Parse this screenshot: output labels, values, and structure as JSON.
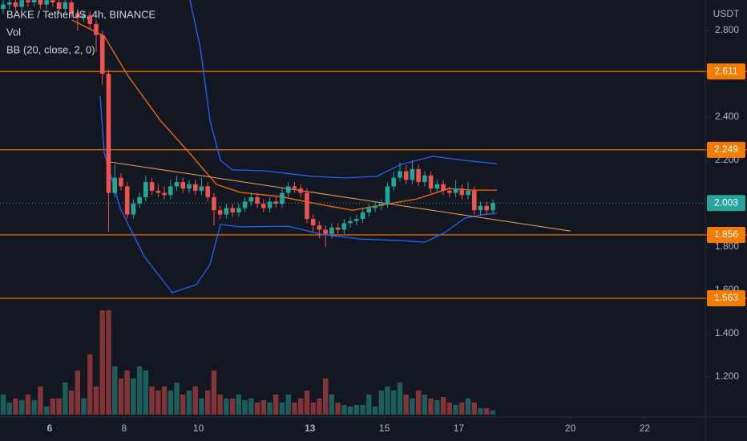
{
  "chart_data": {
    "type": "candlestick",
    "title": "BAKE / TetherUS, 4h, BINANCE",
    "indicators": [
      "Vol",
      "BB (20, close, 2, 0)"
    ],
    "currency": "USDT",
    "up_color": "#26a69a",
    "down_color": "#ef5350",
    "x": [
      4.75,
      4.917,
      5.083,
      5.25,
      5.417,
      5.583,
      5.75,
      5.917,
      6.083,
      6.25,
      6.417,
      6.583,
      6.75,
      6.917,
      7.083,
      7.25,
      7.417,
      7.583,
      7.75,
      7.917,
      8.083,
      8.25,
      8.417,
      8.583,
      8.75,
      8.917,
      9.083,
      9.25,
      9.417,
      9.583,
      9.75,
      9.917,
      10.083,
      10.25,
      10.417,
      10.583,
      10.75,
      10.917,
      11.083,
      11.25,
      11.417,
      11.583,
      11.75,
      11.917,
      12.083,
      12.25,
      12.417,
      12.583,
      12.75,
      12.917,
      13.083,
      13.25,
      13.417,
      13.583,
      13.75,
      13.917,
      14.083,
      14.25,
      14.417,
      14.583,
      14.75,
      14.917,
      15.083,
      15.25,
      15.417,
      15.583,
      15.75,
      15.917,
      16.083,
      16.25,
      16.417,
      16.583,
      16.75,
      16.917,
      17.083,
      17.25,
      17.417,
      17.583,
      17.75,
      17.917
    ],
    "open": [
      2.9,
      2.92,
      2.93,
      2.91,
      2.94,
      2.93,
      2.95,
      2.92,
      2.94,
      2.93,
      2.9,
      2.93,
      2.88,
      2.86,
      2.87,
      2.83,
      2.78,
      2.6,
      2.05,
      2.12,
      2.08,
      1.95,
      2.0,
      2.03,
      2.1,
      2.06,
      2.05,
      2.04,
      2.08,
      2.1,
      2.07,
      2.09,
      2.06,
      2.08,
      2.03,
      1.97,
      1.95,
      1.98,
      1.96,
      1.98,
      2.01,
      2.03,
      2.0,
      1.98,
      2.01,
      2.0,
      2.05,
      2.08,
      2.07,
      2.05,
      1.93,
      1.9,
      1.88,
      1.86,
      1.89,
      1.88,
      1.91,
      1.92,
      1.93,
      1.96,
      1.98,
      1.99,
      2.0,
      2.08,
      2.12,
      2.15,
      2.11,
      2.16,
      2.1,
      2.13,
      2.07,
      2.09,
      2.06,
      2.05,
      2.07,
      2.04,
      2.06,
      1.97,
      1.99,
      1.97
    ],
    "high": [
      2.94,
      2.95,
      2.95,
      2.96,
      2.96,
      2.97,
      2.97,
      2.96,
      2.96,
      2.95,
      2.95,
      2.95,
      2.9,
      2.89,
      2.89,
      2.85,
      2.8,
      2.62,
      2.18,
      2.14,
      2.1,
      2.02,
      2.05,
      2.13,
      2.12,
      2.09,
      2.08,
      2.11,
      2.13,
      2.12,
      2.11,
      2.11,
      2.12,
      2.1,
      2.05,
      1.99,
      2.0,
      2.0,
      2.0,
      2.03,
      2.05,
      2.05,
      2.02,
      2.03,
      2.03,
      2.07,
      2.1,
      2.1,
      2.09,
      2.07,
      1.95,
      1.92,
      1.9,
      1.91,
      1.91,
      1.93,
      1.94,
      1.95,
      1.98,
      2.0,
      2.01,
      2.02,
      2.1,
      2.15,
      2.19,
      2.18,
      2.2,
      2.18,
      2.15,
      2.15,
      2.11,
      2.11,
      2.08,
      2.11,
      2.09,
      2.1,
      2.08,
      2.01,
      2.01,
      2.02
    ],
    "low": [
      2.88,
      2.9,
      2.89,
      2.89,
      2.91,
      2.91,
      2.9,
      2.9,
      2.91,
      2.88,
      2.88,
      2.86,
      2.8,
      2.84,
      2.81,
      2.7,
      2.55,
      1.87,
      2.03,
      2.06,
      1.93,
      1.93,
      1.98,
      2.01,
      2.04,
      2.03,
      2.02,
      2.02,
      2.06,
      2.05,
      2.05,
      2.04,
      2.04,
      2.01,
      1.9,
      1.93,
      1.93,
      1.94,
      1.94,
      1.96,
      1.99,
      1.98,
      1.96,
      1.96,
      1.98,
      1.98,
      2.03,
      2.05,
      2.03,
      1.91,
      1.87,
      1.84,
      1.8,
      1.84,
      1.86,
      1.86,
      1.89,
      1.9,
      1.91,
      1.94,
      1.96,
      1.97,
      1.98,
      2.06,
      2.1,
      2.09,
      2.09,
      2.08,
      2.08,
      2.05,
      2.05,
      2.04,
      2.03,
      2.03,
      2.02,
      2.02,
      1.95,
      1.95,
      1.95,
      1.95
    ],
    "close": [
      2.92,
      2.93,
      2.91,
      2.94,
      2.93,
      2.95,
      2.92,
      2.94,
      2.93,
      2.9,
      2.93,
      2.88,
      2.86,
      2.87,
      2.83,
      2.78,
      2.6,
      2.05,
      2.12,
      2.08,
      1.95,
      2.0,
      2.03,
      2.1,
      2.06,
      2.05,
      2.04,
      2.08,
      2.1,
      2.07,
      2.09,
      2.06,
      2.08,
      2.03,
      1.97,
      1.95,
      1.98,
      1.96,
      1.98,
      2.01,
      2.03,
      2.0,
      1.98,
      2.01,
      2.0,
      2.05,
      2.08,
      2.07,
      2.05,
      1.93,
      1.9,
      1.88,
      1.86,
      1.89,
      1.88,
      1.91,
      1.92,
      1.93,
      1.96,
      1.98,
      1.99,
      2.0,
      2.08,
      2.12,
      2.15,
      2.11,
      2.16,
      2.1,
      2.13,
      2.07,
      2.09,
      2.06,
      2.05,
      2.07,
      2.04,
      2.06,
      1.97,
      1.99,
      1.97,
      2.003
    ],
    "volume": [
      25,
      15,
      20,
      18,
      25,
      18,
      35,
      10,
      20,
      20,
      40,
      30,
      55,
      20,
      75,
      35,
      130,
      130,
      60,
      45,
      55,
      45,
      60,
      55,
      35,
      30,
      35,
      30,
      40,
      25,
      30,
      35,
      20,
      30,
      55,
      25,
      20,
      20,
      25,
      18,
      20,
      15,
      18,
      15,
      25,
      15,
      25,
      15,
      20,
      30,
      15,
      20,
      45,
      25,
      15,
      12,
      10,
      12,
      12,
      25,
      10,
      30,
      35,
      30,
      40,
      25,
      20,
      30,
      25,
      20,
      18,
      22,
      15,
      12,
      15,
      20,
      15,
      8,
      8,
      5
    ],
    "lines": [
      {
        "color": "#2962ff",
        "x": [
          9.772,
          10.052,
          10.31,
          10.591,
          10.914,
          11.776,
          13.069,
          13.931,
          14.793,
          15.44,
          16.302,
          17.164,
          18.026
        ],
        "values": [
          2.941,
          2.719,
          2.385,
          2.2,
          2.156,
          2.152,
          2.126,
          2.119,
          2.126,
          2.181,
          2.219,
          2.2,
          2.185
        ]
      },
      {
        "color": "#ff6d00",
        "x": [
          6.603,
          7.466,
          8.112,
          8.974,
          9.836,
          10.483,
          11.129,
          12.207,
          13.284,
          14.147,
          15.009,
          15.871,
          16.733,
          17.379,
          18.026
        ],
        "values": [
          2.848,
          2.774,
          2.589,
          2.385,
          2.219,
          2.089,
          2.052,
          2.033,
          1.996,
          1.97,
          1.996,
          2.022,
          2.07,
          2.063,
          2.063
        ]
      },
      {
        "color": "#2962ff",
        "x": [
          7.358,
          7.466,
          7.897,
          8.543,
          9.297,
          9.944,
          10.31,
          10.591,
          11.129,
          12.422,
          13.284,
          14.362,
          15.44,
          16.086,
          16.625,
          17.164,
          17.595,
          18.026
        ],
        "values": [
          2.496,
          2.237,
          1.978,
          1.756,
          1.589,
          1.626,
          1.719,
          1.904,
          1.893,
          1.896,
          1.859,
          1.837,
          1.83,
          1.822,
          1.867,
          1.933,
          1.948,
          1.956
        ]
      },
      {
        "color": "#f7a35c",
        "x": [
          7.616,
          20
        ],
        "values": [
          2.193,
          1.874
        ]
      }
    ],
    "levels": [
      {
        "value": 2.611,
        "color": "#f57c00"
      },
      {
        "value": 2.249,
        "color": "#f57c00"
      },
      {
        "value": 1.856,
        "color": "#f57c00"
      },
      {
        "value": 1.563,
        "color": "#f57c00"
      }
    ],
    "xlim": [
      4.664,
      23.629
    ],
    "xticks": [
      6,
      8,
      10,
      13,
      15,
      17,
      20,
      22
    ],
    "ylim": [
      1.015,
      2.941
    ],
    "yticks": [
      {
        "value": 2.8,
        "label": "2.800"
      },
      {
        "value": 2.4,
        "label": "2.400"
      },
      {
        "value": 2.2,
        "label": "2.200"
      },
      {
        "value": 1.8,
        "label": "1.800"
      },
      {
        "value": 1.6,
        "label": "1.600"
      },
      {
        "value": 1.4,
        "label": "1.400"
      },
      {
        "value": 1.2,
        "label": "1.200"
      }
    ],
    "y2lim": [
      0,
      517
    ],
    "grid": false
  }
}
